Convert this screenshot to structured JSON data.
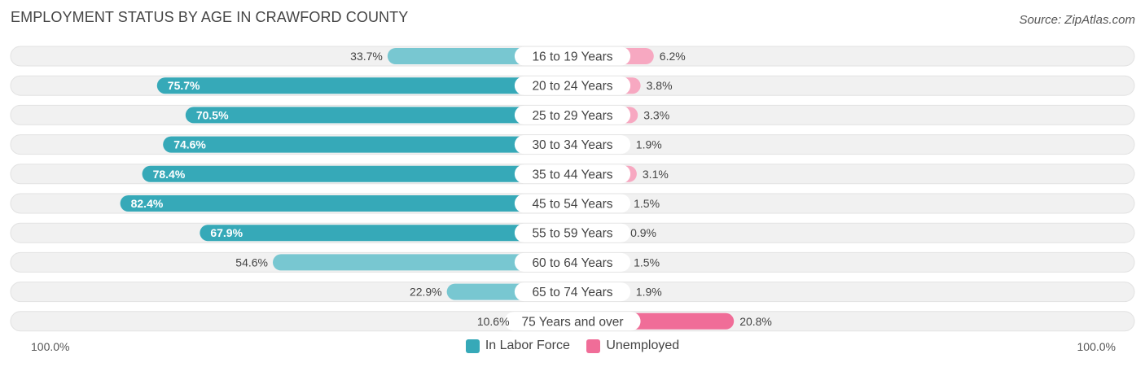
{
  "title": "EMPLOYMENT STATUS BY AGE IN CRAWFORD COUNTY",
  "source": "Source: ZipAtlas.com",
  "colors": {
    "labor_dark": "#36a9b8",
    "labor_light": "#78c7d1",
    "unemployed_dark": "#f06d98",
    "unemployed_light": "#f7a8c1",
    "row_bg": "#f0f0f0"
  },
  "chart_data": {
    "type": "bar",
    "orientation": "horizontal-diverging",
    "title": "EMPLOYMENT STATUS BY AGE IN CRAWFORD COUNTY",
    "categories": [
      "16 to 19 Years",
      "20 to 24 Years",
      "25 to 29 Years",
      "30 to 34 Years",
      "35 to 44 Years",
      "45 to 54 Years",
      "55 to 59 Years",
      "60 to 64 Years",
      "65 to 74 Years",
      "75 Years and over"
    ],
    "series": [
      {
        "name": "In Labor Force",
        "values": [
          33.7,
          75.7,
          70.5,
          74.6,
          78.4,
          82.4,
          67.9,
          54.6,
          22.9,
          10.6
        ],
        "labels": [
          "33.7%",
          "75.7%",
          "70.5%",
          "74.6%",
          "78.4%",
          "82.4%",
          "67.9%",
          "54.6%",
          "22.9%",
          "10.6%"
        ]
      },
      {
        "name": "Unemployed",
        "values": [
          6.2,
          3.8,
          3.3,
          1.9,
          3.1,
          1.5,
          0.9,
          1.5,
          1.9,
          20.8
        ],
        "labels": [
          "6.2%",
          "3.8%",
          "3.3%",
          "1.9%",
          "3.1%",
          "1.5%",
          "0.9%",
          "1.5%",
          "1.9%",
          "20.8%"
        ]
      }
    ],
    "xlim": [
      -100,
      100
    ],
    "axis_left_label": "100.0%",
    "axis_right_label": "100.0%",
    "legend_position": "bottom-center"
  },
  "legend": {
    "labor": "In Labor Force",
    "unemployed": "Unemployed"
  }
}
